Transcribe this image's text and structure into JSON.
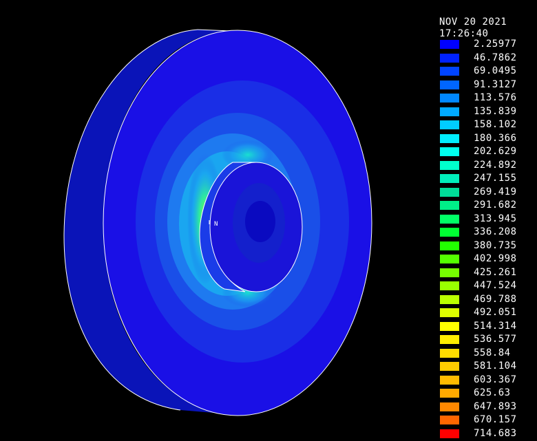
{
  "header": {
    "date": "NOV 20 2021",
    "time": "17:26:40"
  },
  "legend": {
    "entries": [
      {
        "value": "2.25977",
        "color": "#0000ff"
      },
      {
        "value": "46.7862",
        "color": "#0022ff"
      },
      {
        "value": "69.0495",
        "color": "#0044ff"
      },
      {
        "value": "91.3127",
        "color": "#0066ff"
      },
      {
        "value": "113.576",
        "color": "#0088ff"
      },
      {
        "value": "135.839",
        "color": "#00aaff"
      },
      {
        "value": "158.102",
        "color": "#00ccff"
      },
      {
        "value": "180.366",
        "color": "#00eeff"
      },
      {
        "value": "202.629",
        "color": "#00ffee"
      },
      {
        "value": "224.892",
        "color": "#00ffcc"
      },
      {
        "value": "247.155",
        "color": "#00eebb"
      },
      {
        "value": "269.419",
        "color": "#00dd99"
      },
      {
        "value": "291.682",
        "color": "#00ee88"
      },
      {
        "value": "313.945",
        "color": "#00ff66"
      },
      {
        "value": "336.208",
        "color": "#00ff33"
      },
      {
        "value": "380.735",
        "color": "#22ff00"
      },
      {
        "value": "402.998",
        "color": "#55ff00"
      },
      {
        "value": "425.261",
        "color": "#77ff00"
      },
      {
        "value": "447.524",
        "color": "#99ff00"
      },
      {
        "value": "469.788",
        "color": "#bbff00"
      },
      {
        "value": "492.051",
        "color": "#ddff00"
      },
      {
        "value": "514.314",
        "color": "#ffff00"
      },
      {
        "value": "536.577",
        "color": "#ffee00"
      },
      {
        "value": "558.84",
        "color": "#ffdd00"
      },
      {
        "value": "581.104",
        "color": "#ffcc00"
      },
      {
        "value": "603.367",
        "color": "#ffbb00"
      },
      {
        "value": "625.63",
        "color": "#ffaa00"
      },
      {
        "value": "647.893",
        "color": "#ff8800"
      },
      {
        "value": "670.157",
        "color": "#ff6600"
      },
      {
        "value": "714.683",
        "color": "#ff0000"
      }
    ]
  },
  "model": {
    "label": "N",
    "colors": {
      "background": "#000000",
      "disk_side": "#0a14b8",
      "disk_face": "#1a10e6",
      "contour_1": "#1a4fe8",
      "contour_2": "#1e7af0",
      "contour_3": "#1aa6f0",
      "contour_4": "#10d2e6",
      "hot_spot": "#2aff55",
      "hub": "#1a14d8",
      "hub_center": "#0a0ac0",
      "edge": "#ffffff"
    }
  }
}
